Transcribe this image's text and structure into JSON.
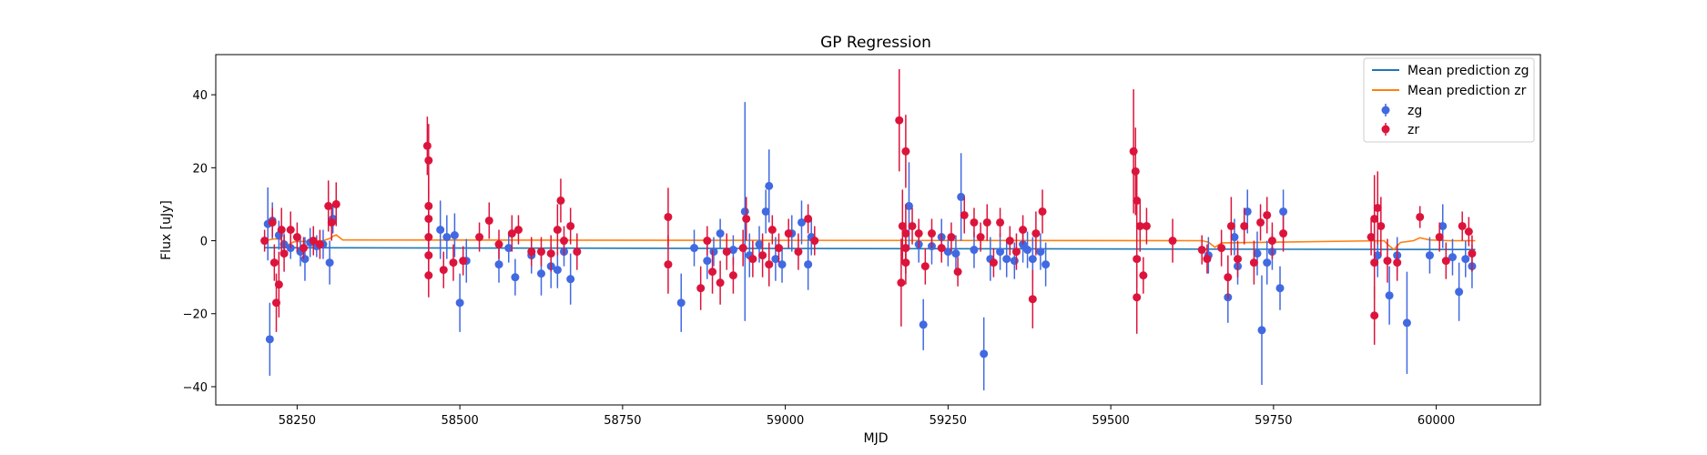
{
  "chart_data": {
    "type": "scatter",
    "title": "GP Regression",
    "xlabel": "MJD",
    "ylabel": "Flux [uJy]",
    "xlim": [
      58125,
      60160
    ],
    "ylim": [
      -45,
      51
    ],
    "xticks": [
      58250,
      58500,
      58750,
      59000,
      59250,
      59500,
      59750,
      60000
    ],
    "yticks": [
      -40,
      -20,
      0,
      20,
      40
    ],
    "grid": false,
    "legend_position": "top-right",
    "mean_predictions": [
      {
        "name": "Mean prediction zg",
        "color": "#1f77b4",
        "x": [
          58200,
          60060
        ],
        "y": [
          -1.9,
          -2.4
        ]
      },
      {
        "name": "Mean prediction zr",
        "color": "#ff7f0e",
        "x": [
          58200,
          58215,
          58225,
          58235,
          58245,
          58290,
          58300,
          58305,
          58310,
          58320,
          59640,
          59650,
          59660,
          59670,
          59920,
          59925,
          59935,
          59945,
          59965,
          59975,
          59990,
          60020,
          60060
        ],
        "y": [
          0,
          0.5,
          0.4,
          -1.3,
          -0.3,
          0,
          0.6,
          1.2,
          1.6,
          0.2,
          0,
          -0.4,
          -1.8,
          -0.6,
          0,
          -1,
          -2.4,
          -0.5,
          0,
          0.8,
          0.2,
          0,
          0
        ]
      }
    ],
    "series": [
      {
        "name": "zg",
        "color": "#4169e1",
        "points": [
          [
            58205,
            4.6,
            10
          ],
          [
            58208,
            -27,
            10
          ],
          [
            58212,
            5.5,
            5
          ],
          [
            58222,
            1.5,
            4
          ],
          [
            58230,
            -1,
            3
          ],
          [
            58240,
            -2,
            3
          ],
          [
            58255,
            -3,
            4
          ],
          [
            58262,
            -5,
            6
          ],
          [
            58270,
            -0.5,
            4
          ],
          [
            58280,
            -1.5,
            3
          ],
          [
            58290,
            -1,
            4
          ],
          [
            58300,
            -6,
            6
          ],
          [
            58305,
            6,
            4
          ],
          [
            58470,
            3,
            8
          ],
          [
            58480,
            1,
            6
          ],
          [
            58492,
            1.5,
            6
          ],
          [
            58500,
            -17,
            8
          ],
          [
            58510,
            -5.5,
            6
          ],
          [
            58560,
            -6.5,
            5
          ],
          [
            58575,
            -2,
            4
          ],
          [
            58585,
            -10,
            5
          ],
          [
            58610,
            -4,
            5
          ],
          [
            58625,
            -9,
            6
          ],
          [
            58640,
            -7,
            6
          ],
          [
            58650,
            -8,
            5
          ],
          [
            58660,
            -3,
            4
          ],
          [
            58670,
            -10.5,
            7
          ],
          [
            58840,
            -17,
            8
          ],
          [
            58860,
            -2,
            5
          ],
          [
            58880,
            -5.5,
            5
          ],
          [
            58890,
            -3,
            4
          ],
          [
            58900,
            2,
            4
          ],
          [
            58920,
            -2.5,
            4
          ],
          [
            58938,
            8,
            30
          ],
          [
            58945,
            -4,
            6
          ],
          [
            58960,
            -1,
            5
          ],
          [
            58970,
            8,
            6
          ],
          [
            58975,
            15,
            10
          ],
          [
            58985,
            -5,
            6
          ],
          [
            58995,
            -6.5,
            5
          ],
          [
            59010,
            2,
            5
          ],
          [
            59025,
            5,
            6
          ],
          [
            59035,
            -6.5,
            7
          ],
          [
            59040,
            1,
            5
          ],
          [
            59190,
            9.5,
            12
          ],
          [
            59205,
            -1,
            5
          ],
          [
            59212,
            -23,
            7
          ],
          [
            59225,
            -1.5,
            5
          ],
          [
            59240,
            1,
            5
          ],
          [
            59250,
            -3,
            4
          ],
          [
            59262,
            -3.5,
            5
          ],
          [
            59270,
            12,
            12
          ],
          [
            59290,
            -2.5,
            5
          ],
          [
            59305,
            -31,
            10
          ],
          [
            59315,
            -5,
            6
          ],
          [
            59330,
            -3,
            5
          ],
          [
            59340,
            -5,
            5
          ],
          [
            59352,
            -5.5,
            5
          ],
          [
            59365,
            -1,
            5
          ],
          [
            59372,
            -2.5,
            5
          ],
          [
            59380,
            -5,
            6
          ],
          [
            59392,
            -3,
            5
          ],
          [
            59400,
            -6.5,
            6
          ],
          [
            59650,
            -4,
            5
          ],
          [
            59680,
            -15.5,
            7
          ],
          [
            59690,
            1,
            5
          ],
          [
            59695,
            -7,
            5
          ],
          [
            59710,
            8,
            6
          ],
          [
            59725,
            -3.5,
            6
          ],
          [
            59732,
            -24.5,
            15
          ],
          [
            59740,
            -6,
            6
          ],
          [
            59748,
            -3,
            5
          ],
          [
            59760,
            -13,
            6
          ],
          [
            59765,
            8,
            6
          ],
          [
            59910,
            -4,
            6
          ],
          [
            59928,
            -15,
            8
          ],
          [
            59940,
            -4,
            5
          ],
          [
            59955,
            -22.5,
            14
          ],
          [
            59990,
            -4,
            5
          ],
          [
            60010,
            4,
            6
          ],
          [
            60025,
            -4.5,
            5
          ],
          [
            60035,
            -14,
            8
          ],
          [
            60045,
            -5,
            5
          ],
          [
            60055,
            -7,
            6
          ]
        ]
      },
      {
        "name": "zr",
        "color": "#dc143c",
        "points": [
          [
            58200,
            0,
            3
          ],
          [
            58212,
            5,
            4
          ],
          [
            58215,
            -6,
            5
          ],
          [
            58218,
            -17,
            8
          ],
          [
            58222,
            -12,
            9
          ],
          [
            58226,
            3,
            6
          ],
          [
            58230,
            -3.5,
            5
          ],
          [
            58240,
            3,
            5
          ],
          [
            58250,
            1,
            4
          ],
          [
            58260,
            -2,
            3
          ],
          [
            58275,
            0,
            4
          ],
          [
            58285,
            -1,
            4
          ],
          [
            58298,
            9.5,
            7
          ],
          [
            58303,
            5,
            5
          ],
          [
            58310,
            10,
            6
          ],
          [
            58450,
            26,
            8
          ],
          [
            58452,
            22,
            10
          ],
          [
            58452,
            9.5,
            9
          ],
          [
            58452,
            6,
            8
          ],
          [
            58452,
            1,
            7
          ],
          [
            58452,
            -4,
            6
          ],
          [
            58452,
            -9.5,
            6
          ],
          [
            58475,
            -8,
            5
          ],
          [
            58490,
            -6,
            5
          ],
          [
            58505,
            -5.5,
            4
          ],
          [
            58530,
            1,
            4
          ],
          [
            58545,
            5.5,
            5
          ],
          [
            58560,
            -1,
            4
          ],
          [
            58580,
            2,
            5
          ],
          [
            58590,
            3,
            4
          ],
          [
            58610,
            -3,
            4
          ],
          [
            58625,
            -3,
            4
          ],
          [
            58640,
            -3.5,
            5
          ],
          [
            58650,
            3,
            7
          ],
          [
            58655,
            11,
            6
          ],
          [
            58660,
            0,
            4
          ],
          [
            58670,
            4,
            5
          ],
          [
            58680,
            -3,
            5
          ],
          [
            58820,
            6.5,
            8
          ],
          [
            58820,
            -6.5,
            8
          ],
          [
            58870,
            -13,
            6
          ],
          [
            58880,
            0,
            4
          ],
          [
            58888,
            -8.5,
            6
          ],
          [
            58900,
            -11.5,
            6
          ],
          [
            58910,
            -3,
            5
          ],
          [
            58920,
            -9.5,
            5
          ],
          [
            58935,
            -2,
            5
          ],
          [
            58940,
            6,
            6
          ],
          [
            58950,
            -5,
            5
          ],
          [
            58965,
            -4,
            6
          ],
          [
            58975,
            -6.5,
            6
          ],
          [
            58980,
            3,
            4
          ],
          [
            58990,
            -2,
            4
          ],
          [
            59005,
            2,
            4
          ],
          [
            59020,
            -3,
            5
          ],
          [
            59035,
            6,
            4
          ],
          [
            59045,
            0,
            4
          ],
          [
            59175,
            33,
            14
          ],
          [
            59178,
            -11.5,
            12
          ],
          [
            59180,
            4,
            10
          ],
          [
            59185,
            24.5,
            10
          ],
          [
            59185,
            2,
            8
          ],
          [
            59185,
            -2,
            7
          ],
          [
            59185,
            -6,
            6
          ],
          [
            59195,
            4,
            5
          ],
          [
            59205,
            2,
            4
          ],
          [
            59215,
            -7,
            5
          ],
          [
            59225,
            2,
            4
          ],
          [
            59240,
            -2,
            4
          ],
          [
            59255,
            1,
            4
          ],
          [
            59265,
            -8.5,
            4
          ],
          [
            59275,
            7,
            5
          ],
          [
            59290,
            5,
            4
          ],
          [
            59300,
            1,
            4
          ],
          [
            59310,
            5,
            5
          ],
          [
            59320,
            -6,
            4
          ],
          [
            59330,
            5,
            4
          ],
          [
            59345,
            0,
            4
          ],
          [
            59355,
            -3,
            5
          ],
          [
            59365,
            3,
            4
          ],
          [
            59380,
            -16,
            8
          ],
          [
            59385,
            2,
            6
          ],
          [
            59395,
            8,
            6
          ],
          [
            59535,
            24.5,
            17
          ],
          [
            59538,
            19,
            12
          ],
          [
            59540,
            11,
            8
          ],
          [
            59540,
            -5,
            8
          ],
          [
            59540,
            -15.5,
            10
          ],
          [
            59545,
            4,
            7
          ],
          [
            59550,
            -9.5,
            5
          ],
          [
            59555,
            4,
            5
          ],
          [
            59595,
            0,
            6
          ],
          [
            59640,
            -2.5,
            4
          ],
          [
            59648,
            -5,
            4
          ],
          [
            59670,
            -2,
            5
          ],
          [
            59680,
            -10,
            6
          ],
          [
            59685,
            4,
            8
          ],
          [
            59695,
            -5,
            5
          ],
          [
            59705,
            4,
            5
          ],
          [
            59720,
            -6,
            6
          ],
          [
            59730,
            5,
            5
          ],
          [
            59740,
            7,
            5
          ],
          [
            59748,
            0,
            5
          ],
          [
            59765,
            2,
            5
          ],
          [
            59900,
            1,
            5
          ],
          [
            59905,
            -20.5,
            8
          ],
          [
            59905,
            6,
            12
          ],
          [
            59905,
            -6,
            10
          ],
          [
            59910,
            9,
            10
          ],
          [
            59915,
            4,
            8
          ],
          [
            59925,
            -5.5,
            6
          ],
          [
            59940,
            -6,
            5
          ],
          [
            59975,
            6.5,
            3
          ],
          [
            60005,
            1,
            4
          ],
          [
            60015,
            -5.5,
            5
          ],
          [
            60040,
            4,
            4
          ],
          [
            60050,
            2.5,
            4
          ],
          [
            60055,
            -3.5,
            5
          ]
        ]
      }
    ]
  }
}
